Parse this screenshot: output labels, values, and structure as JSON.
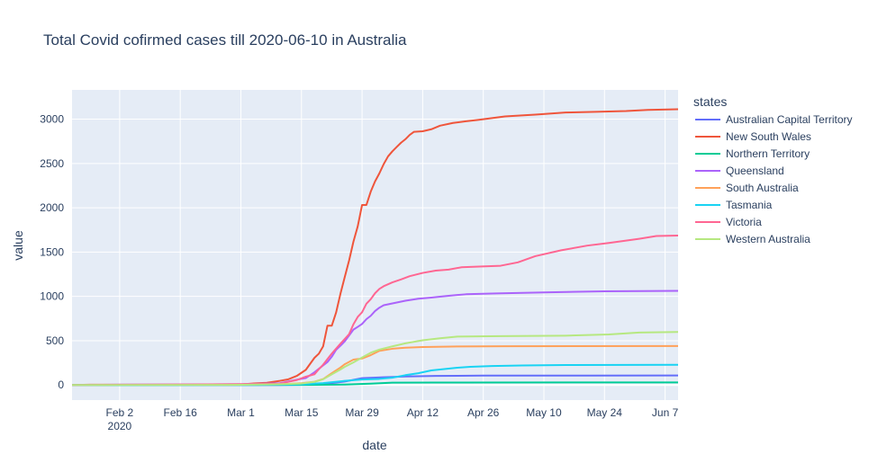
{
  "chart_data": {
    "type": "line",
    "title": "Total Covid cofirmed cases till 2020-06-10 in Australia",
    "xlabel": "date",
    "ylabel": "value",
    "xlim": [
      "2020-01-22",
      "2020-06-10"
    ],
    "ylim": [
      -170,
      3330
    ],
    "grid": true,
    "legend_title": "states",
    "legend_position": "right",
    "x_ticks": [
      {
        "date": "2020-02-02",
        "label": "Feb 2",
        "sublabel": "2020"
      },
      {
        "date": "2020-02-16",
        "label": "Feb 16",
        "sublabel": ""
      },
      {
        "date": "2020-03-01",
        "label": "Mar 1",
        "sublabel": ""
      },
      {
        "date": "2020-03-15",
        "label": "Mar 15",
        "sublabel": ""
      },
      {
        "date": "2020-03-29",
        "label": "Mar 29",
        "sublabel": ""
      },
      {
        "date": "2020-04-12",
        "label": "Apr 12",
        "sublabel": ""
      },
      {
        "date": "2020-04-26",
        "label": "Apr 26",
        "sublabel": ""
      },
      {
        "date": "2020-05-10",
        "label": "May 10",
        "sublabel": ""
      },
      {
        "date": "2020-05-24",
        "label": "May 24",
        "sublabel": ""
      },
      {
        "date": "2020-06-07",
        "label": "Jun 7",
        "sublabel": ""
      }
    ],
    "y_ticks": [
      0,
      500,
      1000,
      1500,
      2000,
      2500,
      3000
    ],
    "series": [
      {
        "name": "Australian Capital Territory",
        "color": "#636efa",
        "points": [
          [
            "2020-01-22",
            0
          ],
          [
            "2020-03-10",
            0
          ],
          [
            "2020-03-15",
            2
          ],
          [
            "2020-03-20",
            10
          ],
          [
            "2020-03-25",
            39
          ],
          [
            "2020-03-29",
            77
          ],
          [
            "2020-04-03",
            87
          ],
          [
            "2020-04-08",
            96
          ],
          [
            "2020-04-15",
            103
          ],
          [
            "2020-04-26",
            106
          ],
          [
            "2020-05-20",
            107
          ],
          [
            "2020-06-10",
            108
          ]
        ]
      },
      {
        "name": "New South Wales",
        "color": "#ef553b",
        "points": [
          [
            "2020-01-22",
            0
          ],
          [
            "2020-01-26",
            4
          ],
          [
            "2020-02-20",
            4
          ],
          [
            "2020-03-01",
            6
          ],
          [
            "2020-03-04",
            18
          ],
          [
            "2020-03-07",
            25
          ],
          [
            "2020-03-10",
            47
          ],
          [
            "2020-03-12",
            65
          ],
          [
            "2020-03-14",
            105
          ],
          [
            "2020-03-16",
            171
          ],
          [
            "2020-03-18",
            307
          ],
          [
            "2020-03-19",
            353
          ],
          [
            "2020-03-20",
            436
          ],
          [
            "2020-03-21",
            669
          ],
          [
            "2020-03-22",
            669
          ],
          [
            "2020-03-23",
            818
          ],
          [
            "2020-03-24",
            1029
          ],
          [
            "2020-03-25",
            1219
          ],
          [
            "2020-03-26",
            1405
          ],
          [
            "2020-03-27",
            1617
          ],
          [
            "2020-03-28",
            1791
          ],
          [
            "2020-03-29",
            2032
          ],
          [
            "2020-03-30",
            2032
          ],
          [
            "2020-03-31",
            2182
          ],
          [
            "2020-04-01",
            2298
          ],
          [
            "2020-04-02",
            2389
          ],
          [
            "2020-04-03",
            2493
          ],
          [
            "2020-04-04",
            2580
          ],
          [
            "2020-04-05",
            2637
          ],
          [
            "2020-04-06",
            2686
          ],
          [
            "2020-04-07",
            2734
          ],
          [
            "2020-04-08",
            2773
          ],
          [
            "2020-04-09",
            2822
          ],
          [
            "2020-04-10",
            2857
          ],
          [
            "2020-04-12",
            2863
          ],
          [
            "2020-04-14",
            2886
          ],
          [
            "2020-04-16",
            2926
          ],
          [
            "2020-04-19",
            2957
          ],
          [
            "2020-04-22",
            2976
          ],
          [
            "2020-04-25",
            2993
          ],
          [
            "2020-05-01",
            3031
          ],
          [
            "2020-05-08",
            3051
          ],
          [
            "2020-05-15",
            3075
          ],
          [
            "2020-05-22",
            3083
          ],
          [
            "2020-05-29",
            3092
          ],
          [
            "2020-06-03",
            3104
          ],
          [
            "2020-06-10",
            3112
          ]
        ]
      },
      {
        "name": "Northern Territory",
        "color": "#00cc96",
        "points": [
          [
            "2020-01-22",
            0
          ],
          [
            "2020-03-15",
            1
          ],
          [
            "2020-03-25",
            5
          ],
          [
            "2020-03-31",
            15
          ],
          [
            "2020-04-05",
            27
          ],
          [
            "2020-04-15",
            28
          ],
          [
            "2020-06-10",
            29
          ]
        ]
      },
      {
        "name": "Queensland",
        "color": "#ab63fa",
        "points": [
          [
            "2020-01-22",
            0
          ],
          [
            "2020-01-29",
            3
          ],
          [
            "2020-02-15",
            5
          ],
          [
            "2020-03-01",
            9
          ],
          [
            "2020-03-10",
            20
          ],
          [
            "2020-03-14",
            61
          ],
          [
            "2020-03-16",
            78
          ],
          [
            "2020-03-18",
            144
          ],
          [
            "2020-03-20",
            221
          ],
          [
            "2020-03-21",
            259
          ],
          [
            "2020-03-22",
            319
          ],
          [
            "2020-03-23",
            397
          ],
          [
            "2020-03-24",
            443
          ],
          [
            "2020-03-25",
            493
          ],
          [
            "2020-03-27",
            625
          ],
          [
            "2020-03-28",
            656
          ],
          [
            "2020-03-29",
            689
          ],
          [
            "2020-03-30",
            743
          ],
          [
            "2020-03-31",
            781
          ],
          [
            "2020-04-01",
            835
          ],
          [
            "2020-04-02",
            873
          ],
          [
            "2020-04-03",
            900
          ],
          [
            "2020-04-05",
            921
          ],
          [
            "2020-04-08",
            951
          ],
          [
            "2020-04-11",
            974
          ],
          [
            "2020-04-14",
            987
          ],
          [
            "2020-04-18",
            1007
          ],
          [
            "2020-04-22",
            1024
          ],
          [
            "2020-04-29",
            1033
          ],
          [
            "2020-05-10",
            1045
          ],
          [
            "2020-05-24",
            1058
          ],
          [
            "2020-06-10",
            1062
          ]
        ]
      },
      {
        "name": "South Australia",
        "color": "#ffa15a",
        "points": [
          [
            "2020-01-22",
            0
          ],
          [
            "2020-02-02",
            2
          ],
          [
            "2020-03-01",
            3
          ],
          [
            "2020-03-10",
            7
          ],
          [
            "2020-03-15",
            20
          ],
          [
            "2020-03-18",
            37
          ],
          [
            "2020-03-20",
            67
          ],
          [
            "2020-03-22",
            134
          ],
          [
            "2020-03-24",
            197
          ],
          [
            "2020-03-25",
            235
          ],
          [
            "2020-03-27",
            287
          ],
          [
            "2020-03-29",
            299
          ],
          [
            "2020-03-31",
            337
          ],
          [
            "2020-04-02",
            385
          ],
          [
            "2020-04-05",
            409
          ],
          [
            "2020-04-08",
            421
          ],
          [
            "2020-04-12",
            429
          ],
          [
            "2020-04-20",
            435
          ],
          [
            "2020-05-01",
            438
          ],
          [
            "2020-06-10",
            440
          ]
        ]
      },
      {
        "name": "Tasmania",
        "color": "#19d3f3",
        "points": [
          [
            "2020-01-22",
            0
          ],
          [
            "2020-03-05",
            1
          ],
          [
            "2020-03-15",
            7
          ],
          [
            "2020-03-20",
            22
          ],
          [
            "2020-03-25",
            47
          ],
          [
            "2020-03-29",
            62
          ],
          [
            "2020-04-02",
            69
          ],
          [
            "2020-04-05",
            82
          ],
          [
            "2020-04-08",
            111
          ],
          [
            "2020-04-11",
            133
          ],
          [
            "2020-04-14",
            165
          ],
          [
            "2020-04-17",
            180
          ],
          [
            "2020-04-20",
            195
          ],
          [
            "2020-04-23",
            205
          ],
          [
            "2020-04-28",
            214
          ],
          [
            "2020-05-05",
            221
          ],
          [
            "2020-05-15",
            226
          ],
          [
            "2020-06-10",
            228
          ]
        ]
      },
      {
        "name": "Victoria",
        "color": "#ff6692",
        "points": [
          [
            "2020-01-22",
            0
          ],
          [
            "2020-01-25",
            1
          ],
          [
            "2020-03-01",
            10
          ],
          [
            "2020-03-10",
            15
          ],
          [
            "2020-03-12",
            36
          ],
          [
            "2020-03-14",
            57
          ],
          [
            "2020-03-16",
            94
          ],
          [
            "2020-03-18",
            121
          ],
          [
            "2020-03-19",
            178
          ],
          [
            "2020-03-20",
            229
          ],
          [
            "2020-03-22",
            355
          ],
          [
            "2020-03-24",
            466
          ],
          [
            "2020-03-25",
            520
          ],
          [
            "2020-03-26",
            574
          ],
          [
            "2020-03-27",
            685
          ],
          [
            "2020-03-28",
            769
          ],
          [
            "2020-03-29",
            821
          ],
          [
            "2020-03-30",
            917
          ],
          [
            "2020-03-31",
            968
          ],
          [
            "2020-04-01",
            1036
          ],
          [
            "2020-04-02",
            1085
          ],
          [
            "2020-04-03",
            1115
          ],
          [
            "2020-04-05",
            1158
          ],
          [
            "2020-04-07",
            1191
          ],
          [
            "2020-04-09",
            1228
          ],
          [
            "2020-04-12",
            1265
          ],
          [
            "2020-04-15",
            1291
          ],
          [
            "2020-04-18",
            1302
          ],
          [
            "2020-04-21",
            1329
          ],
          [
            "2020-04-25",
            1337
          ],
          [
            "2020-04-30",
            1346
          ],
          [
            "2020-05-04",
            1384
          ],
          [
            "2020-05-08",
            1454
          ],
          [
            "2020-05-14",
            1520
          ],
          [
            "2020-05-20",
            1573
          ],
          [
            "2020-05-25",
            1603
          ],
          [
            "2020-06-01",
            1650
          ],
          [
            "2020-06-05",
            1681
          ],
          [
            "2020-06-10",
            1687
          ]
        ]
      },
      {
        "name": "Western Australia",
        "color": "#b6e880",
        "points": [
          [
            "2020-01-22",
            0
          ],
          [
            "2020-03-01",
            2
          ],
          [
            "2020-03-10",
            9
          ],
          [
            "2020-03-15",
            17
          ],
          [
            "2020-03-18",
            35
          ],
          [
            "2020-03-20",
            64
          ],
          [
            "2020-03-22",
            120
          ],
          [
            "2020-03-24",
            175
          ],
          [
            "2020-03-25",
            205
          ],
          [
            "2020-03-27",
            255
          ],
          [
            "2020-03-29",
            311
          ],
          [
            "2020-03-31",
            364
          ],
          [
            "2020-04-02",
            400
          ],
          [
            "2020-04-05",
            436
          ],
          [
            "2020-04-08",
            470
          ],
          [
            "2020-04-12",
            505
          ],
          [
            "2020-04-16",
            527
          ],
          [
            "2020-04-20",
            546
          ],
          [
            "2020-04-30",
            551
          ],
          [
            "2020-05-15",
            557
          ],
          [
            "2020-05-25",
            570
          ],
          [
            "2020-06-01",
            592
          ],
          [
            "2020-06-10",
            599
          ]
        ]
      }
    ]
  }
}
